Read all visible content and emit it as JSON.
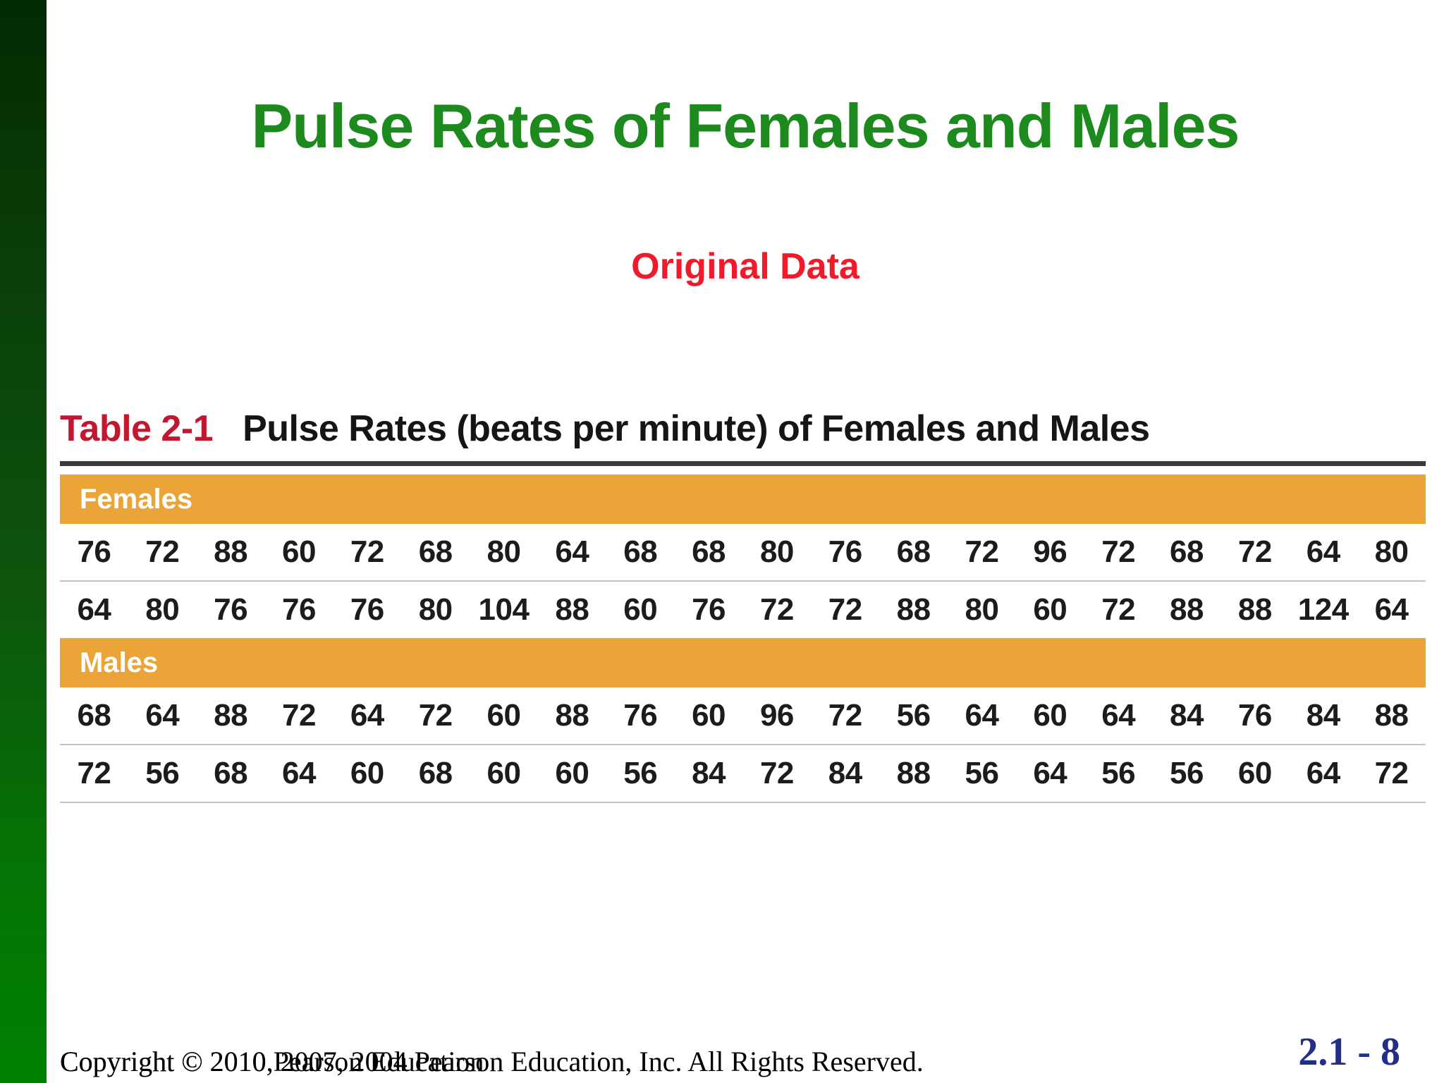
{
  "slide": {
    "title": "Pulse Rates of Females and Males",
    "subtitle": "Original Data",
    "page_number": "2.1 - 8",
    "copyright_line1": "Copyright © 2010, 2007, 2004 Pearson Education, Inc. All Rights Reserved.",
    "copyright_line2": "Copyright © 2010 Pearson Education"
  },
  "table": {
    "label": "Table 2-1",
    "heading": "Pulse Rates (beats per minute) of Females and Males",
    "sections": [
      {
        "header": "Females",
        "rows": [
          [
            76,
            72,
            88,
            60,
            72,
            68,
            80,
            64,
            68,
            68,
            80,
            76,
            68,
            72,
            96,
            72,
            68,
            72,
            64,
            80
          ],
          [
            64,
            80,
            76,
            76,
            76,
            80,
            104,
            88,
            60,
            76,
            72,
            72,
            88,
            80,
            60,
            72,
            88,
            88,
            124,
            64
          ]
        ]
      },
      {
        "header": "Males",
        "rows": [
          [
            68,
            64,
            88,
            72,
            64,
            72,
            60,
            88,
            76,
            60,
            96,
            72,
            56,
            64,
            60,
            64,
            84,
            76,
            84,
            88
          ],
          [
            72,
            56,
            68,
            64,
            60,
            68,
            60,
            60,
            56,
            84,
            72,
            84,
            88,
            56,
            64,
            56,
            56,
            60,
            64,
            72
          ]
        ]
      }
    ]
  },
  "chart_data": {
    "type": "table",
    "title": "Pulse Rates (beats per minute) of Females and Males",
    "groups": [
      {
        "name": "Females",
        "values": [
          76,
          72,
          88,
          60,
          72,
          68,
          80,
          64,
          68,
          68,
          80,
          76,
          68,
          72,
          96,
          72,
          68,
          72,
          64,
          80,
          64,
          80,
          76,
          76,
          76,
          80,
          104,
          88,
          60,
          76,
          72,
          72,
          88,
          80,
          60,
          72,
          88,
          88,
          124,
          64
        ]
      },
      {
        "name": "Males",
        "values": [
          68,
          64,
          88,
          72,
          64,
          72,
          60,
          88,
          76,
          60,
          96,
          72,
          56,
          64,
          60,
          64,
          84,
          76,
          84,
          88,
          72,
          56,
          68,
          64,
          60,
          68,
          60,
          60,
          56,
          84,
          72,
          84,
          88,
          56,
          64,
          56,
          56,
          60,
          64,
          72
        ]
      }
    ]
  },
  "colors": {
    "title_green": "#1d8a1d",
    "subtitle_red": "#ef1b2d",
    "table_label_red": "#c2172e",
    "section_header_orange": "#eaa438",
    "page_number_blue": "#222e87",
    "sidebar_green_top": "#032b03",
    "sidebar_green_bottom": "#008000"
  }
}
